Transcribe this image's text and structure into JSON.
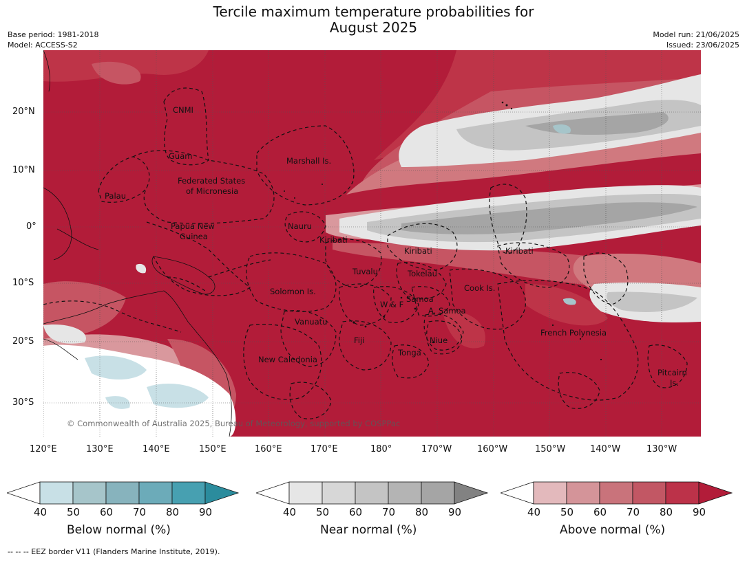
{
  "header": {
    "title_line1": "Tercile maximum temperature probabilities for",
    "title_line2": "August 2025",
    "base_period": "Base period: 1981-2018",
    "model": "Model: ACCESS-S2",
    "model_run": "Model run: 21/06/2025",
    "issued": "Issued: 23/06/2025"
  },
  "map": {
    "copyright": "© Commonwealth of Australia 2025, Bureau of Meteorology, supported by COSPPac",
    "lat_labels": [
      "20°N",
      "10°N",
      "0°",
      "10°S",
      "20°S",
      "30°S"
    ],
    "lon_labels": [
      "120°E",
      "130°E",
      "140°E",
      "150°E",
      "160°E",
      "170°E",
      "180°",
      "170°W",
      "160°W",
      "150°W",
      "140°W",
      "130°W"
    ],
    "regions": {
      "cnmi": "CNMI",
      "guam": "Guam",
      "marshall": "Marshall Is.",
      "fsm_1": "Federated States",
      "fsm_2": "of Micronesia",
      "palau": "Palau",
      "png_1": "Papua New",
      "png_2": "Guinea",
      "nauru": "Nauru",
      "kiribati_w": "Kiribati",
      "kiribati_c": "Kiribati",
      "kiribati_e": "Kiribati",
      "tuvalu": "Tuvalu",
      "tokelau": "Tokelau",
      "cook": "Cook Is.",
      "solomon": "Solomon Is.",
      "samoa": "Samoa",
      "wf": "W & F",
      "asamoa": "A. Samoa",
      "vanuatu": "Vanuatu",
      "fiji": "Fiji",
      "niue": "Niue",
      "tonga": "Tonga",
      "french_poly": "French Polynesia",
      "newcal": "New Caledonia",
      "pitcairn_1": "Pitcairn",
      "pitcairn_2": "Is."
    },
    "colors": {
      "above_90": "#b21c39",
      "above_80": "#be3448",
      "above_70": "#c65563",
      "above_60": "#d0797f",
      "above_50": "#d9989d",
      "above_40": "#e3b9bc",
      "near_40": "#e6e6e6",
      "near_50": "#d7d7d7",
      "near_60": "#c4c4c4",
      "near_70": "#b4b4b4",
      "near_80": "#a5a5a5",
      "below_40": "#c8e0e6",
      "below_50": "#a6c5ca",
      "land_white": "#ffffff"
    }
  },
  "colorbars": [
    {
      "title": "Below normal (%)",
      "ticks": [
        "40",
        "50",
        "60",
        "70",
        "80",
        "90"
      ],
      "colors": [
        "#ffffff",
        "#c8e0e6",
        "#a6c5ca",
        "#87b3bd",
        "#6cabb9",
        "#47a0b1",
        "#2b8c9d"
      ]
    },
    {
      "title": "Near normal (%)",
      "ticks": [
        "40",
        "50",
        "60",
        "70",
        "80",
        "90"
      ],
      "colors": [
        "#ffffff",
        "#e6e6e6",
        "#d7d7d7",
        "#c4c4c4",
        "#b4b4b4",
        "#a5a5a5",
        "#828282"
      ]
    },
    {
      "title": "Above normal (%)",
      "ticks": [
        "40",
        "50",
        "60",
        "70",
        "80",
        "90"
      ],
      "colors": [
        "#ffffff",
        "#e3b9bc",
        "#d49499",
        "#c9737b",
        "#c25764",
        "#bc3249",
        "#b21c39"
      ]
    }
  ],
  "footnote": "--  --  -- EEZ border V11 (Flanders Marine Institute, 2019)."
}
